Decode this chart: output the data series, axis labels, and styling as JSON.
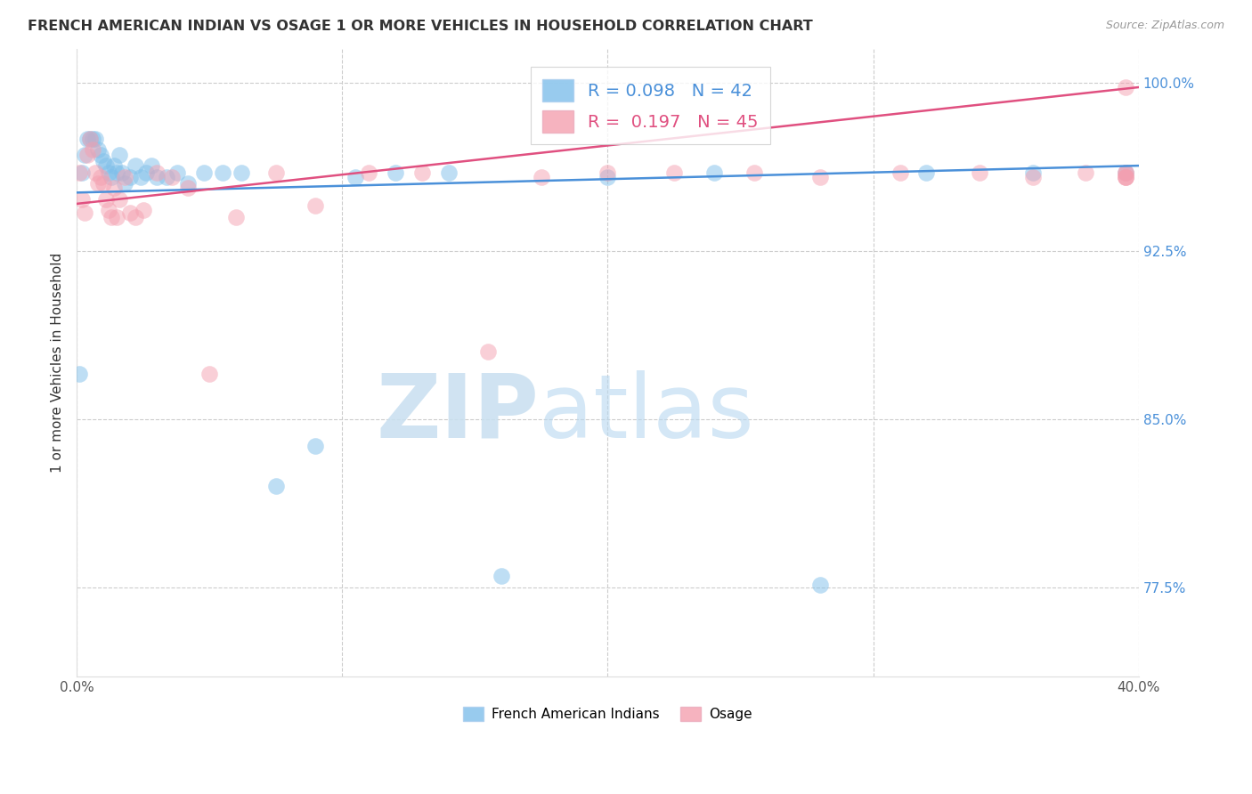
{
  "title": "FRENCH AMERICAN INDIAN VS OSAGE 1 OR MORE VEHICLES IN HOUSEHOLD CORRELATION CHART",
  "source": "Source: ZipAtlas.com",
  "ylabel": "1 or more Vehicles in Household",
  "xlim": [
    0.0,
    0.4
  ],
  "ylim": [
    0.735,
    1.015
  ],
  "ytick_positions": [
    0.775,
    0.85,
    0.925,
    1.0
  ],
  "ytick_labels": [
    "77.5%",
    "85.0%",
    "92.5%",
    "100.0%"
  ],
  "legend_blue_r": "0.098",
  "legend_blue_n": "42",
  "legend_pink_r": "0.197",
  "legend_pink_n": "45",
  "legend_label_blue": "French American Indians",
  "legend_label_pink": "Osage",
  "blue_color": "#7fbfea",
  "pink_color": "#f4a0b0",
  "blue_line_color": "#4a90d9",
  "pink_line_color": "#e05080",
  "watermark_zip": "ZIP",
  "watermark_atlas": "atlas",
  "blue_x": [
    0.001,
    0.002,
    0.003,
    0.004,
    0.005,
    0.006,
    0.007,
    0.008,
    0.009,
    0.01,
    0.011,
    0.012,
    0.013,
    0.014,
    0.015,
    0.016,
    0.017,
    0.018,
    0.02,
    0.022,
    0.024,
    0.026,
    0.028,
    0.03,
    0.034,
    0.038,
    0.042,
    0.048,
    0.055,
    0.062,
    0.075,
    0.09,
    0.105,
    0.12,
    0.14,
    0.16,
    0.2,
    0.24,
    0.28,
    0.32,
    0.36,
    0.395
  ],
  "blue_y": [
    0.87,
    0.96,
    0.968,
    0.975,
    0.975,
    0.975,
    0.975,
    0.97,
    0.968,
    0.965,
    0.963,
    0.96,
    0.958,
    0.963,
    0.96,
    0.968,
    0.96,
    0.955,
    0.958,
    0.963,
    0.958,
    0.96,
    0.963,
    0.958,
    0.958,
    0.96,
    0.955,
    0.96,
    0.96,
    0.96,
    0.82,
    0.838,
    0.958,
    0.96,
    0.96,
    0.78,
    0.958,
    0.96,
    0.776,
    0.96,
    0.96,
    0.96
  ],
  "pink_x": [
    0.001,
    0.002,
    0.003,
    0.004,
    0.005,
    0.006,
    0.007,
    0.008,
    0.009,
    0.01,
    0.011,
    0.012,
    0.013,
    0.014,
    0.015,
    0.016,
    0.018,
    0.02,
    0.022,
    0.025,
    0.03,
    0.036,
    0.042,
    0.05,
    0.06,
    0.075,
    0.09,
    0.11,
    0.13,
    0.155,
    0.175,
    0.2,
    0.225,
    0.255,
    0.28,
    0.31,
    0.34,
    0.36,
    0.38,
    0.395,
    0.395,
    0.395,
    0.395,
    0.395,
    0.395
  ],
  "pink_y": [
    0.96,
    0.948,
    0.942,
    0.968,
    0.975,
    0.97,
    0.96,
    0.955,
    0.958,
    0.955,
    0.948,
    0.943,
    0.94,
    0.953,
    0.94,
    0.948,
    0.958,
    0.942,
    0.94,
    0.943,
    0.96,
    0.958,
    0.953,
    0.87,
    0.94,
    0.96,
    0.945,
    0.96,
    0.96,
    0.88,
    0.958,
    0.96,
    0.96,
    0.96,
    0.958,
    0.96,
    0.96,
    0.958,
    0.96,
    0.96,
    0.96,
    0.958,
    0.958,
    0.958,
    0.998
  ],
  "blue_trend_x0": 0.0,
  "blue_trend_x1": 0.4,
  "blue_trend_y0": 0.951,
  "blue_trend_y1": 0.963,
  "pink_trend_x0": 0.0,
  "pink_trend_x1": 0.4,
  "pink_trend_y0": 0.946,
  "pink_trend_y1": 0.998
}
